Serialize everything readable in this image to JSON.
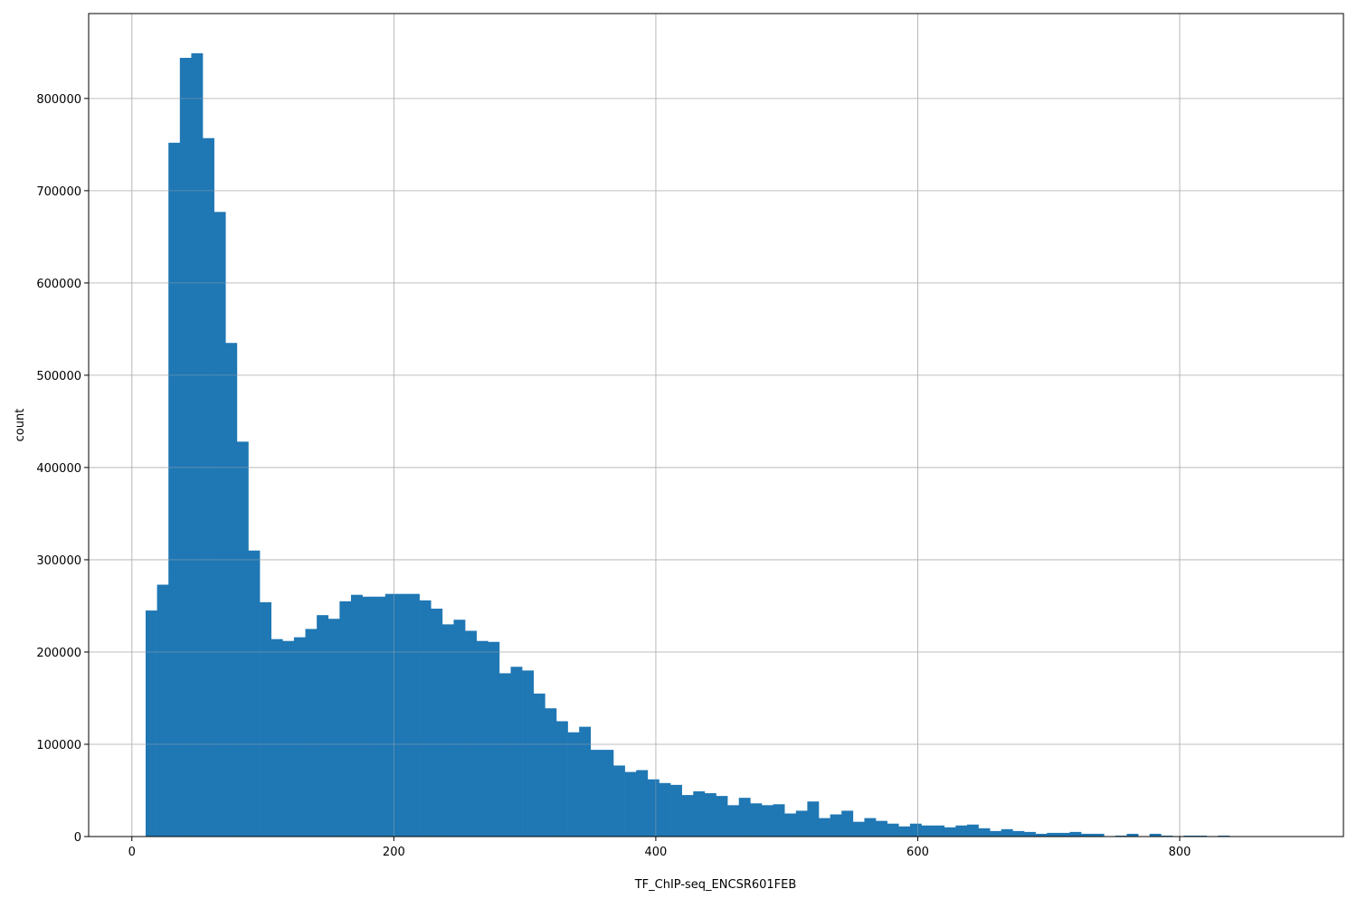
{
  "chart_data": {
    "type": "bar",
    "subtype": "histogram",
    "title": "",
    "xlabel": "TF_ChIP-seq_ENCSR601FEB",
    "ylabel": "count",
    "xlim": [
      -33,
      925
    ],
    "ylim": [
      0,
      892000
    ],
    "grid": true,
    "bin_start": 10.5,
    "bin_width": 8.71,
    "x_ticks": [
      0,
      200,
      400,
      600,
      800
    ],
    "y_ticks": [
      0,
      100000,
      200000,
      300000,
      400000,
      500000,
      600000,
      700000,
      800000
    ],
    "bar_color": "#1f77b4",
    "values": [
      245000,
      273000,
      752000,
      844000,
      849000,
      757000,
      677000,
      535000,
      428000,
      310000,
      254000,
      214000,
      212000,
      216000,
      225000,
      240000,
      236000,
      255000,
      262000,
      260000,
      260000,
      263000,
      263000,
      263000,
      256000,
      247000,
      230000,
      235000,
      223000,
      212000,
      211000,
      177000,
      184000,
      180000,
      155000,
      139000,
      125000,
      113000,
      119000,
      94000,
      94000,
      77000,
      70000,
      72000,
      62000,
      58000,
      56000,
      45000,
      49000,
      47000,
      44000,
      34000,
      42000,
      36000,
      34000,
      35000,
      25000,
      28000,
      38000,
      20000,
      24000,
      28000,
      16000,
      20000,
      17000,
      14000,
      11000,
      14000,
      12000,
      12000,
      10000,
      12000,
      13000,
      9000,
      6000,
      8000,
      6000,
      5000,
      3000,
      4000,
      4000,
      5000,
      3000,
      3000,
      0,
      1000,
      3000,
      0,
      3000,
      1000,
      0,
      1000,
      1000,
      0,
      1000,
      0,
      0,
      0,
      0,
      0
    ]
  }
}
